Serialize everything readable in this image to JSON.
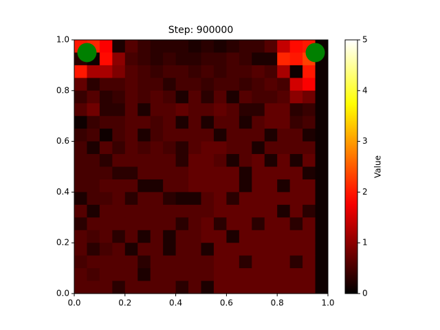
{
  "chart_data": {
    "type": "heatmap",
    "title": "Step: 900000",
    "xlim": [
      0,
      1
    ],
    "ylim": [
      0,
      1
    ],
    "xticks": [
      {
        "value": 0,
        "label": "0.0"
      },
      {
        "value": 0.2,
        "label": "0.2"
      },
      {
        "value": 0.4,
        "label": "0.4"
      },
      {
        "value": 0.6,
        "label": "0.6"
      },
      {
        "value": 0.8,
        "label": "0.8"
      },
      {
        "value": 1,
        "label": "1.0"
      }
    ],
    "yticks": [
      {
        "value": 0,
        "label": "0.0"
      },
      {
        "value": 0.2,
        "label": "0.2"
      },
      {
        "value": 0.4,
        "label": "0.4"
      },
      {
        "value": 0.6,
        "label": "0.6"
      },
      {
        "value": 0.8,
        "label": "0.8"
      },
      {
        "value": 1,
        "label": "1.0"
      }
    ],
    "colormap": "hot",
    "clim": [
      0,
      5
    ],
    "cticks": [
      0,
      1,
      2,
      3,
      4,
      5
    ],
    "colorbar_label": "Value",
    "z": [
      [
        2.0,
        2.1,
        1.8,
        0.2,
        0.6,
        0.4,
        0.3,
        0.3,
        0.3,
        0.2,
        0.3,
        0.2,
        0.3,
        0.4,
        0.4,
        0.6,
        1.4,
        1.9,
        2.0,
        0.1
      ],
      [
        0.3,
        0.1,
        1.9,
        1.0,
        0.5,
        0.4,
        0.3,
        0.4,
        0.3,
        0.3,
        0.4,
        0.4,
        0.5,
        0.4,
        0.2,
        0.2,
        2.1,
        2.0,
        2.3,
        0.1
      ],
      [
        2.0,
        1.2,
        1.2,
        0.9,
        0.6,
        0.5,
        0.4,
        0.5,
        0.5,
        0.4,
        0.5,
        0.4,
        0.5,
        0.5,
        0.6,
        0.5,
        1.2,
        0.1,
        2.0,
        0.1
      ],
      [
        0.7,
        0.3,
        0.5,
        0.5,
        0.6,
        0.5,
        0.5,
        0.3,
        0.5,
        0.5,
        0.4,
        0.5,
        0.5,
        0.4,
        0.5,
        0.6,
        0.5,
        1.5,
        1.8,
        0.1
      ],
      [
        0.4,
        0.6,
        0.3,
        0.4,
        0.6,
        0.5,
        0.6,
        0.5,
        0.2,
        0.6,
        0.3,
        0.6,
        0.2,
        0.6,
        0.5,
        0.5,
        0.6,
        1.0,
        0.8,
        0.1
      ],
      [
        0.6,
        0.8,
        0.3,
        0.3,
        0.6,
        0.2,
        0.6,
        0.6,
        0.7,
        0.6,
        0.6,
        0.7,
        0.6,
        0.3,
        0.3,
        0.7,
        0.7,
        0.3,
        0.4,
        0.1
      ],
      [
        0.1,
        0.4,
        0.5,
        0.5,
        0.6,
        0.6,
        0.5,
        0.6,
        0.2,
        0.6,
        0.2,
        0.6,
        0.6,
        0.2,
        0.6,
        0.7,
        0.7,
        0.4,
        0.5,
        0.1
      ],
      [
        0.4,
        0.5,
        0.1,
        0.5,
        0.6,
        0.2,
        0.5,
        0.6,
        0.6,
        0.6,
        0.6,
        0.2,
        0.6,
        0.6,
        0.6,
        0.2,
        0.6,
        0.6,
        0.2,
        0.1
      ],
      [
        0.5,
        0.2,
        0.6,
        0.4,
        0.6,
        0.5,
        0.6,
        0.5,
        0.3,
        0.6,
        0.7,
        0.7,
        0.6,
        0.6,
        0.2,
        0.6,
        0.6,
        0.6,
        0.6,
        0.1
      ],
      [
        0.5,
        0.5,
        0.3,
        0.6,
        0.6,
        0.6,
        0.6,
        0.6,
        0.3,
        0.7,
        0.7,
        0.6,
        0.2,
        0.6,
        0.7,
        0.2,
        0.7,
        0.2,
        0.7,
        0.1
      ],
      [
        0.5,
        0.5,
        0.5,
        0.3,
        0.3,
        0.6,
        0.6,
        0.6,
        0.6,
        0.7,
        0.7,
        0.7,
        0.7,
        0.2,
        0.7,
        0.7,
        0.7,
        0.7,
        0.2,
        0.1
      ],
      [
        0.5,
        0.5,
        0.6,
        0.6,
        0.6,
        0.2,
        0.2,
        0.6,
        0.6,
        0.7,
        0.7,
        0.7,
        0.7,
        0.2,
        0.7,
        0.7,
        0.2,
        0.7,
        0.7,
        0.1
      ],
      [
        0.2,
        0.5,
        0.5,
        0.6,
        0.3,
        0.6,
        0.6,
        0.3,
        0.2,
        0.2,
        0.6,
        0.7,
        0.3,
        0.7,
        0.7,
        0.7,
        0.7,
        0.7,
        0.7,
        0.1
      ],
      [
        0.6,
        0.2,
        0.6,
        0.6,
        0.6,
        0.6,
        0.6,
        0.6,
        0.6,
        0.6,
        0.6,
        0.7,
        0.7,
        0.7,
        0.7,
        0.7,
        0.2,
        0.7,
        0.3,
        0.1
      ],
      [
        0.3,
        0.6,
        0.6,
        0.6,
        0.6,
        0.6,
        0.6,
        0.6,
        0.3,
        0.6,
        0.7,
        0.3,
        0.7,
        0.7,
        0.3,
        0.7,
        0.7,
        0.3,
        0.7,
        0.1
      ],
      [
        0.6,
        0.5,
        0.6,
        0.3,
        0.6,
        0.2,
        0.6,
        0.2,
        0.6,
        0.6,
        0.7,
        0.7,
        0.2,
        0.7,
        0.7,
        0.7,
        0.7,
        0.7,
        0.7,
        0.1
      ],
      [
        0.6,
        0.3,
        0.5,
        0.6,
        0.2,
        0.6,
        0.6,
        0.2,
        0.6,
        0.6,
        0.2,
        0.7,
        0.7,
        0.7,
        0.7,
        0.7,
        0.7,
        0.7,
        0.7,
        0.1
      ],
      [
        0.5,
        0.6,
        0.6,
        0.6,
        0.6,
        0.3,
        0.6,
        0.6,
        0.6,
        0.6,
        0.6,
        0.7,
        0.7,
        0.3,
        0.7,
        0.7,
        0.7,
        0.3,
        0.7,
        0.1
      ],
      [
        0.6,
        0.5,
        0.6,
        0.6,
        0.6,
        0.2,
        0.6,
        0.6,
        0.6,
        0.6,
        0.6,
        0.7,
        0.7,
        0.7,
        0.7,
        0.7,
        0.7,
        0.7,
        0.7,
        0.1
      ],
      [
        0.6,
        0.6,
        0.6,
        0.3,
        0.6,
        0.6,
        0.6,
        0.6,
        0.3,
        0.6,
        0.2,
        0.7,
        0.7,
        0.7,
        0.7,
        0.7,
        0.7,
        0.7,
        0.7,
        0.1
      ]
    ],
    "markers": {
      "x": [
        0.05,
        0.95
      ],
      "y": [
        0.95,
        0.95
      ],
      "color": "#008000"
    }
  }
}
